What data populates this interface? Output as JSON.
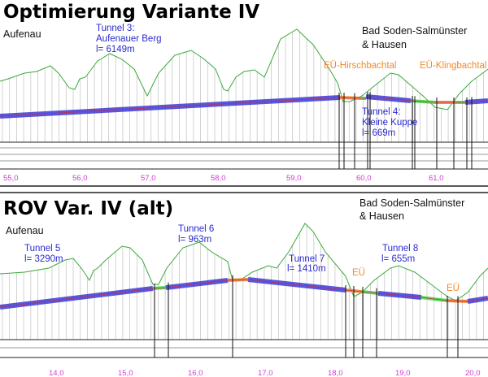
{
  "colors": {
    "ground": "#3aa83a",
    "tunnel": "#3a3ad8",
    "open_track": "#3ad83a",
    "bridge": "#f07828",
    "tunnel_label": "#2a2ad0",
    "bridge_label": "#f08a2a",
    "km_label": "#d040d0"
  },
  "panel1": {
    "title": "Optimierung Variante IV",
    "place_left": "Aufenau",
    "place_right": [
      "Bad Soden-Salmünster",
      "& Hausen"
    ],
    "tunnels": [
      {
        "lines": [
          "Tunnel 3:",
          "Aufenauer Berg",
          "l= 6149m"
        ]
      },
      {
        "lines": [
          "Tunnel 4:",
          "Kleine Kuppe",
          "l= 669m"
        ]
      }
    ],
    "bridges": [
      "EÜ-Hirschbachtal",
      "EÜ-Klingbachtal"
    ],
    "km_ticks": [
      "55,0",
      "56,0",
      "57,0",
      "58,0",
      "59,0",
      "60,0",
      "61,0"
    ]
  },
  "panel2": {
    "title": "ROV Var. IV (alt)",
    "place_left": "Aufenau",
    "place_right": [
      "Bad Soden-Salmünster",
      "& Hausen"
    ],
    "tunnels": [
      {
        "lines": [
          "Tunnel 5",
          "l= 3290m"
        ]
      },
      {
        "lines": [
          "Tunnel 6",
          "l= 963m"
        ]
      },
      {
        "lines": [
          "Tunnel 7",
          "l= 1410m"
        ]
      },
      {
        "lines": [
          "Tunnel 8",
          "l= 655m"
        ]
      }
    ],
    "bridges": [
      "EÜ",
      "EÜ"
    ],
    "km_ticks": [
      "14,0",
      "15,0",
      "16,0",
      "17,0",
      "18,0",
      "19,0",
      "20,0"
    ]
  }
}
